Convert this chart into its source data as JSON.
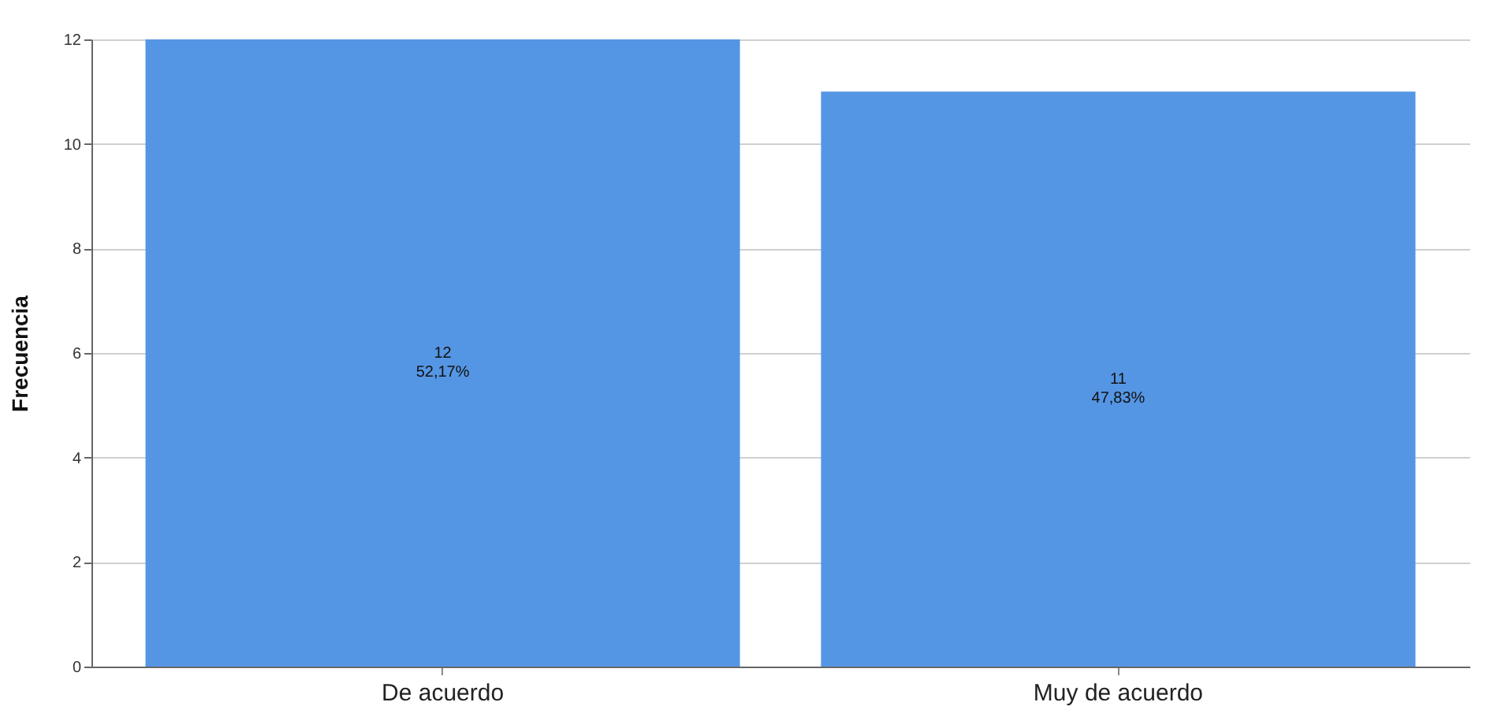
{
  "chart_data": {
    "type": "bar",
    "ylabel": "Frecuencia",
    "categories": [
      "De acuerdo",
      "Muy de acuerdo"
    ],
    "values": [
      12,
      11
    ],
    "value_labels": [
      "12\n52,17%",
      "11\n47,83%"
    ],
    "color": "#5596e4",
    "ylim": [
      0,
      12
    ],
    "yticks": [
      0,
      2,
      4,
      6,
      8,
      10,
      12
    ],
    "grid": "y"
  }
}
